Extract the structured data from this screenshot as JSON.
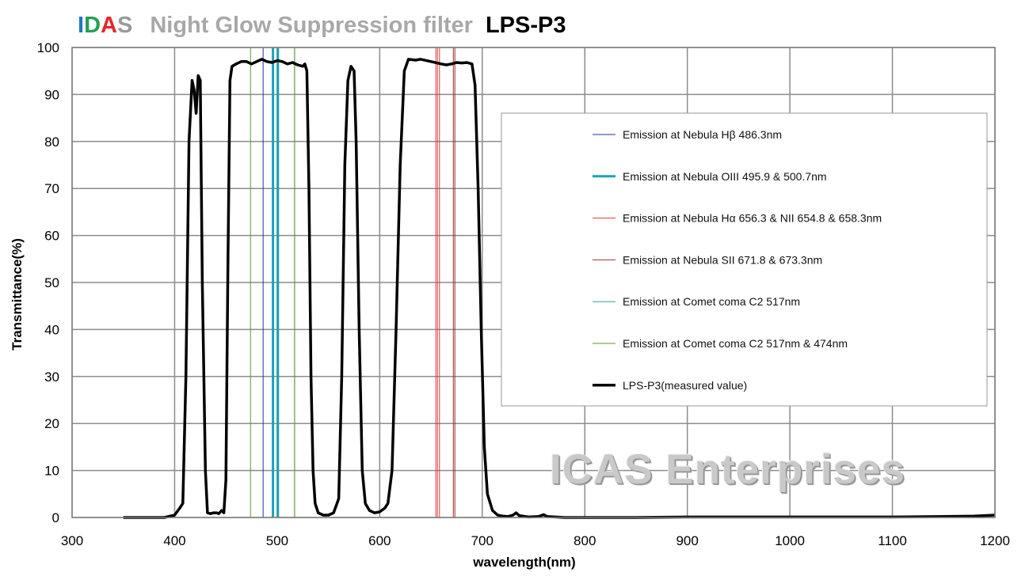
{
  "header": {
    "brand": [
      "I",
      "D",
      "A",
      "S"
    ],
    "subtitle": "Night Glow Suppression filter",
    "model": "LPS-P3"
  },
  "watermark": "ICAS Enterprises",
  "chart_data": {
    "type": "line",
    "title": "Night Glow Suppression filter",
    "xlabel": "wavelength(nm)",
    "ylabel": "Transmittance(%)",
    "xlim": [
      300,
      1200
    ],
    "ylim": [
      0,
      100
    ],
    "xticks": [
      300,
      400,
      500,
      600,
      700,
      800,
      900,
      1000,
      1100,
      1200
    ],
    "yticks": [
      0,
      10,
      20,
      30,
      40,
      50,
      60,
      70,
      80,
      90,
      100
    ],
    "grid": true,
    "legend_position": "right",
    "series": [
      {
        "name": "LPS-P3(measured value)",
        "color": "#000000",
        "points": [
          [
            350,
            0
          ],
          [
            390,
            0
          ],
          [
            400,
            0.5
          ],
          [
            405,
            2
          ],
          [
            408,
            3
          ],
          [
            411,
            30
          ],
          [
            414,
            80
          ],
          [
            417,
            93
          ],
          [
            419,
            91
          ],
          [
            421,
            86
          ],
          [
            423,
            94
          ],
          [
            425,
            93
          ],
          [
            427,
            50
          ],
          [
            430,
            10
          ],
          [
            432,
            1
          ],
          [
            435,
            0.8
          ],
          [
            438,
            1
          ],
          [
            441,
            1
          ],
          [
            443,
            0.8
          ],
          [
            446,
            1.5
          ],
          [
            448,
            1
          ],
          [
            450,
            8
          ],
          [
            452,
            55
          ],
          [
            454,
            93
          ],
          [
            456,
            96
          ],
          [
            460,
            96.5
          ],
          [
            465,
            97
          ],
          [
            470,
            97
          ],
          [
            475,
            96.5
          ],
          [
            480,
            97
          ],
          [
            485,
            97.5
          ],
          [
            490,
            97
          ],
          [
            495,
            96.8
          ],
          [
            500,
            97.2
          ],
          [
            505,
            97
          ],
          [
            510,
            96.5
          ],
          [
            515,
            96.8
          ],
          [
            520,
            96.3
          ],
          [
            525,
            96
          ],
          [
            527,
            96.5
          ],
          [
            529,
            95
          ],
          [
            531,
            70
          ],
          [
            533,
            30
          ],
          [
            535,
            10
          ],
          [
            537,
            3
          ],
          [
            540,
            1
          ],
          [
            545,
            0.5
          ],
          [
            550,
            0.5
          ],
          [
            555,
            1
          ],
          [
            560,
            4
          ],
          [
            563,
            30
          ],
          [
            566,
            75
          ],
          [
            569,
            93
          ],
          [
            572,
            96
          ],
          [
            575,
            95
          ],
          [
            577,
            80
          ],
          [
            580,
            40
          ],
          [
            583,
            10
          ],
          [
            586,
            3
          ],
          [
            590,
            1.5
          ],
          [
            595,
            1
          ],
          [
            600,
            1.2
          ],
          [
            605,
            2
          ],
          [
            608,
            3
          ],
          [
            612,
            10
          ],
          [
            616,
            40
          ],
          [
            620,
            75
          ],
          [
            624,
            95
          ],
          [
            628,
            97.5
          ],
          [
            635,
            97.3
          ],
          [
            640,
            97.5
          ],
          [
            650,
            97
          ],
          [
            660,
            96.5
          ],
          [
            665,
            96.3
          ],
          [
            670,
            96.5
          ],
          [
            675,
            96.8
          ],
          [
            680,
            96.7
          ],
          [
            685,
            96.8
          ],
          [
            690,
            96.5
          ],
          [
            693,
            92
          ],
          [
            696,
            70
          ],
          [
            699,
            40
          ],
          [
            702,
            15
          ],
          [
            705,
            5
          ],
          [
            710,
            1.5
          ],
          [
            715,
            0.5
          ],
          [
            720,
            0.3
          ],
          [
            725,
            0.2
          ],
          [
            730,
            0.5
          ],
          [
            733,
            1
          ],
          [
            736,
            0.4
          ],
          [
            745,
            0.1
          ],
          [
            755,
            0.2
          ],
          [
            760,
            0.6
          ],
          [
            763,
            0.2
          ],
          [
            780,
            0
          ],
          [
            800,
            0
          ],
          [
            850,
            0
          ],
          [
            900,
            0.1
          ],
          [
            950,
            0.1
          ],
          [
            1000,
            0.1
          ],
          [
            1050,
            0.1
          ],
          [
            1100,
            0.1
          ],
          [
            1150,
            0.2
          ],
          [
            1180,
            0.3
          ],
          [
            1200,
            0.5
          ]
        ]
      }
    ],
    "emission_lines": [
      {
        "label": "Emission at Nebula  Hβ 486.3nm",
        "color": "#2a2aa8",
        "width": 1,
        "wavelengths": [
          486.3
        ]
      },
      {
        "label": "Emission at Nebula OIII  495.9 & 500.7nm",
        "color": "#1ba3b5",
        "width": 3,
        "wavelengths": [
          495.9,
          500.7
        ]
      },
      {
        "label": "Emission at Nebula  Hα 656.3 & NII  654.8 & 658.3nm",
        "color": "#e03a3a",
        "width": 1,
        "wavelengths": [
          654.8,
          656.3,
          658.3
        ]
      },
      {
        "label": "Emission at Nebula  SII  671.8 & 673.3nm",
        "color": "#a03030",
        "width": 1,
        "wavelengths": [
          671.8,
          673.3
        ]
      },
      {
        "label": "Emission at Comet coma C2 517nm",
        "color": "#2aa28c",
        "width": 1,
        "wavelengths": [
          517
        ]
      },
      {
        "label": "Emission at Comet coma C2 517nm & 474nm",
        "color": "#5a9a2a",
        "width": 1,
        "wavelengths": [
          474,
          517
        ]
      }
    ]
  }
}
